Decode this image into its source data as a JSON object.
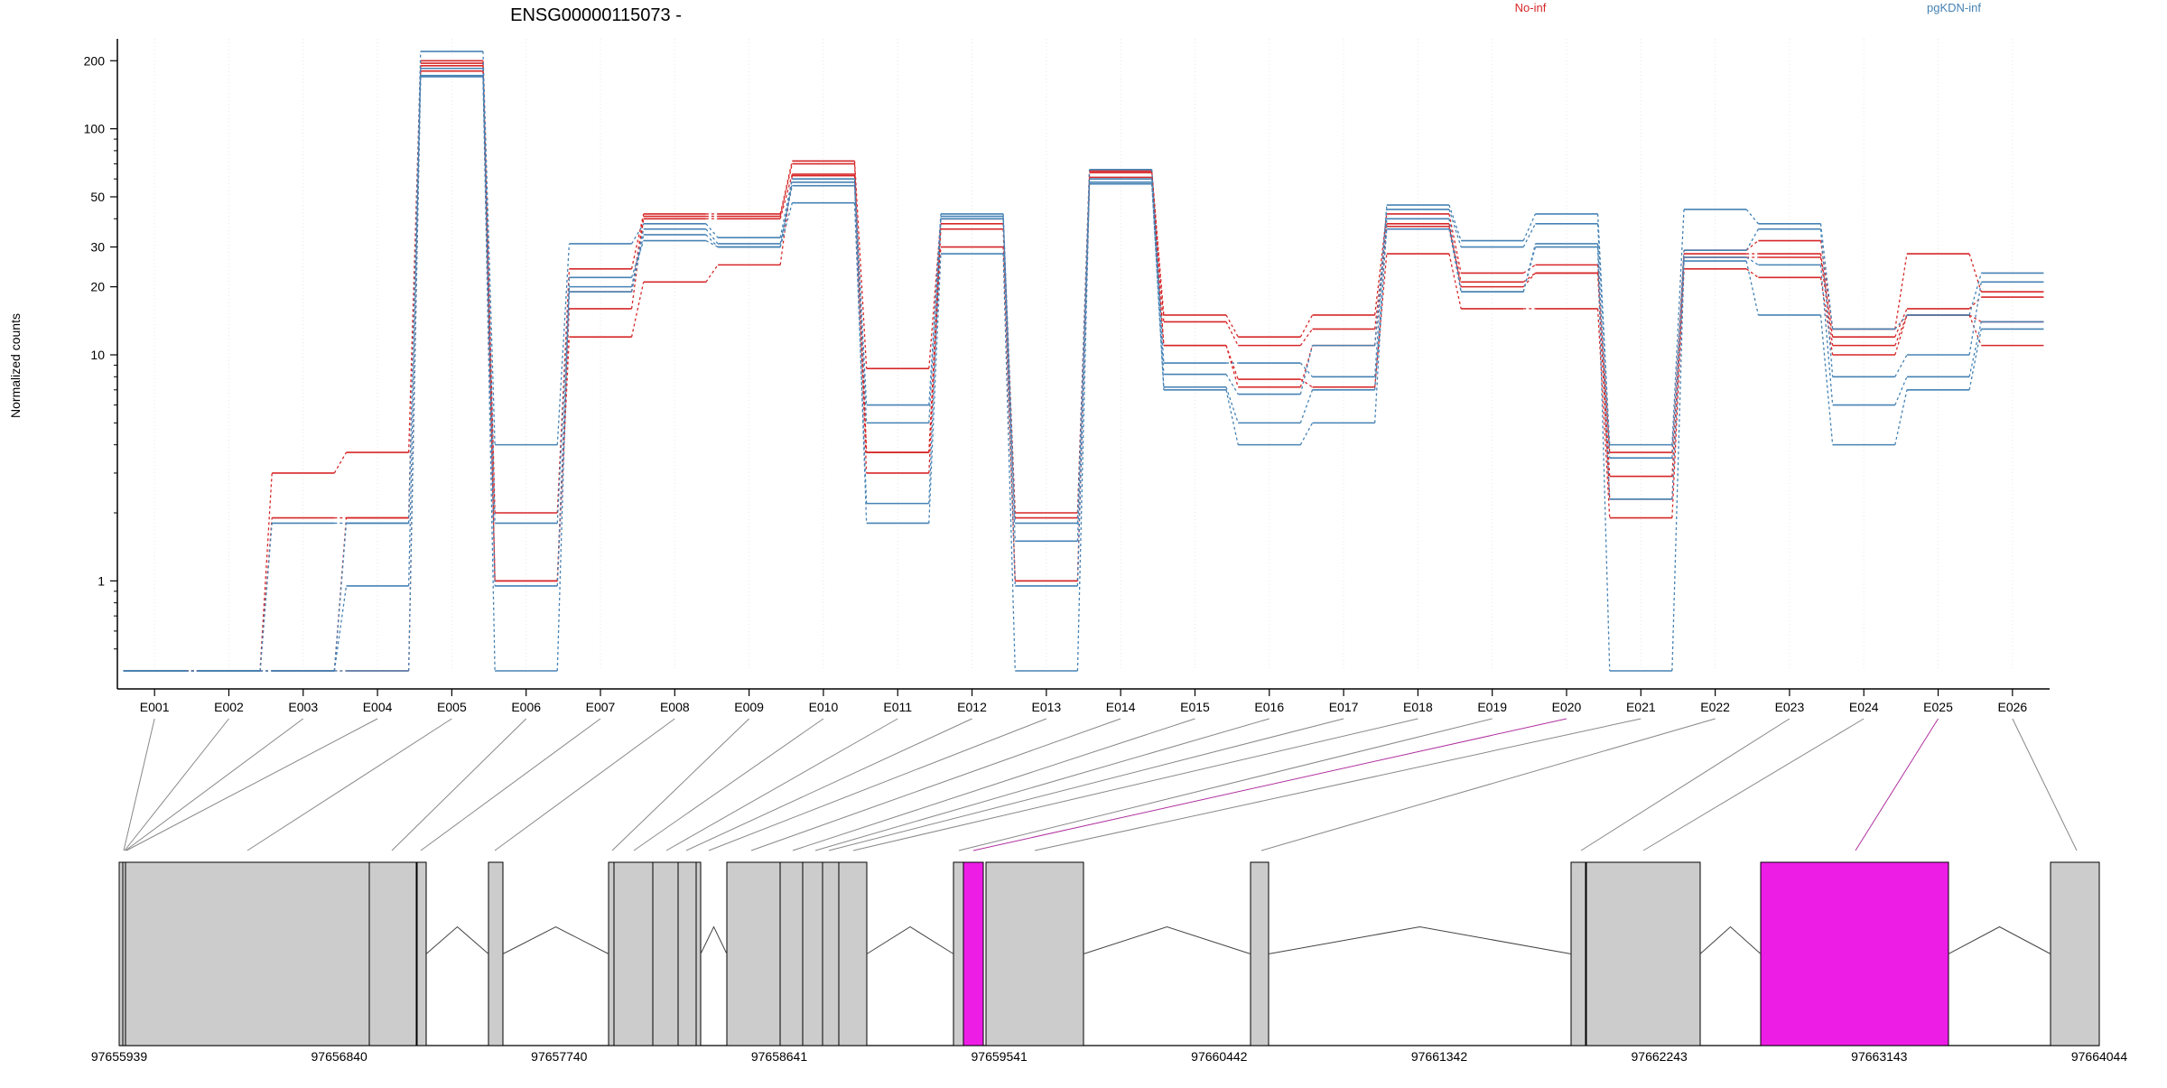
{
  "chart_data": {
    "type": "line",
    "title": "ENSG00000115073 -",
    "xlabel": "",
    "ylabel": "Normalized counts",
    "yscale": "log",
    "ylim": [
      0.4,
      250
    ],
    "yticks": [
      1,
      10,
      20,
      30,
      50,
      100,
      200
    ],
    "legend_placement": "top",
    "legend": [
      {
        "label": "No-inf",
        "color": "#d62728"
      },
      {
        "label": "pgKDN-inf",
        "color": "#4682b4"
      }
    ],
    "colors": {
      "red": "#d62728",
      "blue": "#4682b4",
      "exon_fill": "#cccccc",
      "highlight": "#ee1de6"
    },
    "categories": [
      "E001",
      "E002",
      "E003",
      "E004",
      "E005",
      "E006",
      "E007",
      "E008",
      "E009",
      "E010",
      "E011",
      "E012",
      "E013",
      "E014",
      "E015",
      "E016",
      "E017",
      "E018",
      "E019",
      "E020",
      "E021",
      "E022",
      "E023",
      "E024",
      "E025",
      "E026"
    ],
    "series": [
      {
        "group": "No-inf",
        "values": [
          0.4,
          0.4,
          3.0,
          3.7,
          200,
          2.0,
          24,
          42,
          42,
          72,
          8.7,
          40,
          2.0,
          65,
          15,
          12,
          15,
          42,
          23,
          25,
          3.7,
          29,
          32,
          13,
          28,
          19
        ]
      },
      {
        "group": "No-inf",
        "values": [
          0.4,
          0.4,
          1.9,
          1.9,
          195,
          1.0,
          19,
          41,
          41,
          70,
          3.7,
          38,
          1.9,
          64,
          14,
          11,
          13,
          38,
          21,
          23,
          2.9,
          28,
          28,
          12,
          16,
          18
        ]
      },
      {
        "group": "No-inf",
        "values": [
          0.4,
          0.4,
          0.4,
          1.9,
          190,
          1.0,
          16,
          40,
          40,
          63,
          3.0,
          36,
          1.0,
          61,
          11,
          7.2,
          11,
          37,
          20,
          23,
          2.3,
          27,
          27,
          11,
          15,
          14
        ]
      },
      {
        "group": "No-inf",
        "values": [
          0.4,
          0.4,
          0.4,
          0.4,
          180,
          1.0,
          12,
          21,
          25,
          62,
          3.7,
          30,
          1.0,
          57,
          11,
          7.8,
          7.2,
          28,
          16,
          16,
          1.9,
          24,
          22,
          10,
          15,
          11
        ]
      },
      {
        "group": "pgKDN-inf",
        "values": [
          0.4,
          0.4,
          1.8,
          1.8,
          220,
          4.0,
          31,
          38,
          33,
          60,
          6.0,
          42,
          1.8,
          66,
          9.2,
          9.2,
          8.0,
          46,
          32,
          42,
          4.0,
          44,
          38,
          13,
          15,
          23
        ]
      },
      {
        "group": "pgKDN-inf",
        "values": [
          0.4,
          0.4,
          0.4,
          0.95,
          185,
          1.8,
          20,
          36,
          31,
          56,
          5.0,
          41,
          1.5,
          60,
          8.2,
          6.7,
          11,
          44,
          30,
          38,
          3.5,
          29,
          36,
          8.0,
          10,
          21
        ]
      },
      {
        "group": "pgKDN-inf",
        "values": [
          0.4,
          0.4,
          0.4,
          1.8,
          172,
          0.95,
          19,
          34,
          30,
          47,
          2.2,
          40,
          0.95,
          57,
          7.2,
          5.0,
          7.0,
          36,
          19,
          31,
          2.3,
          27,
          25,
          6.0,
          8.0,
          14
        ]
      },
      {
        "group": "pgKDN-inf",
        "values": [
          0.4,
          0.4,
          0.4,
          0.4,
          170,
          0.4,
          22,
          32,
          30,
          58,
          1.8,
          28,
          0.4,
          58,
          7.0,
          4.0,
          5.0,
          40,
          19,
          30,
          0.4,
          26,
          15,
          4.0,
          7.0,
          13
        ]
      }
    ],
    "gene_model": {
      "coordinate_ticks": [
        "97655939",
        "97656840",
        "97657740",
        "97658641",
        "97659541",
        "97660442",
        "97661342",
        "97662243",
        "97663143",
        "97664044"
      ],
      "highlighted_exons": [
        "E020",
        "E025"
      ]
    }
  }
}
